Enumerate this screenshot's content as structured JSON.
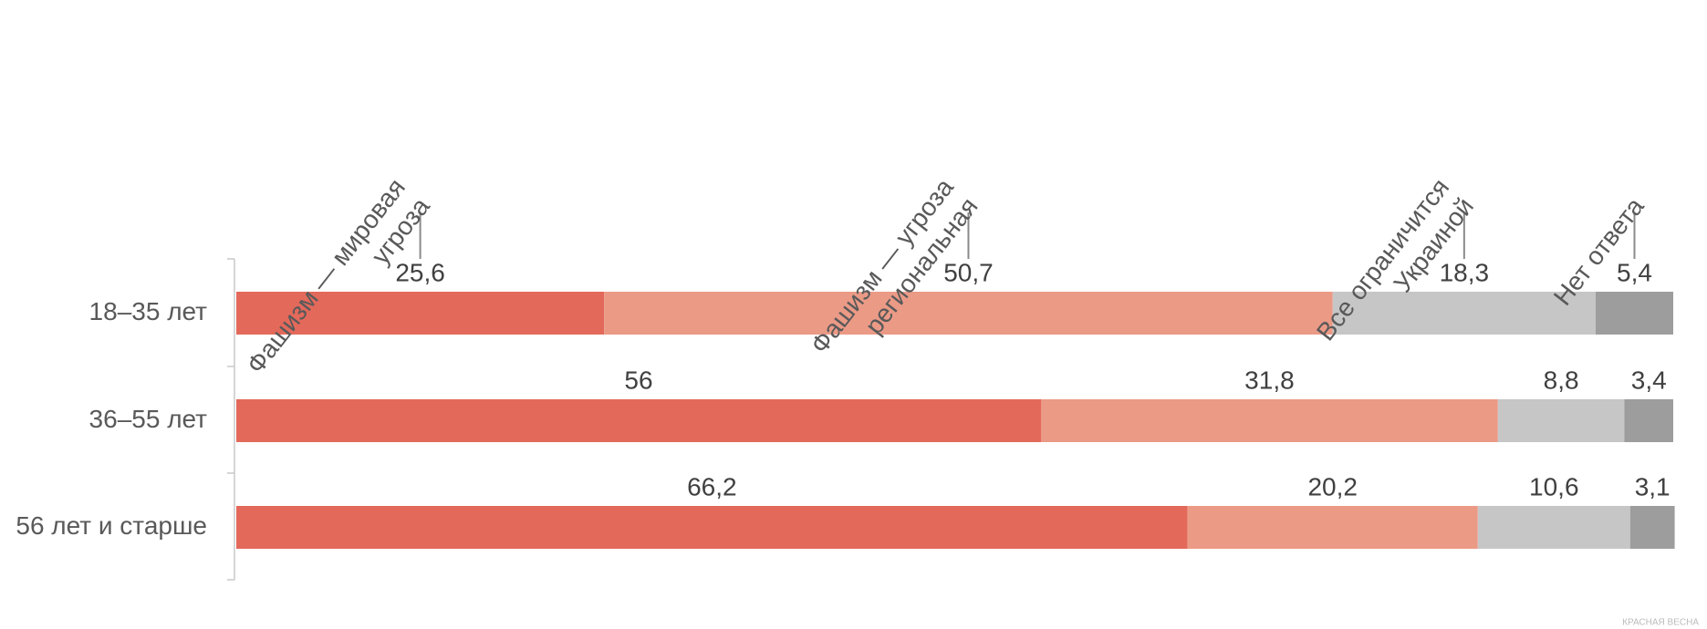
{
  "chart_data": {
    "type": "stacked-bar-horizontal",
    "categories": [
      "18–35 лет",
      "36–55 лет",
      "56 лет и старше"
    ],
    "xlim": [
      0,
      100
    ],
    "series": [
      {
        "name": "Фашизм — мировая угроза",
        "color": "#e3695b",
        "values": [
          25.6,
          56,
          66.2
        ],
        "value_labels": [
          "25,6",
          "56",
          "66,2"
        ]
      },
      {
        "name": "Фашизм — угроза региональная",
        "color": "#eb9a86",
        "values": [
          50.7,
          31.8,
          20.2
        ],
        "value_labels": [
          "50,7",
          "31,8",
          "20,2"
        ]
      },
      {
        "name": "Все ограничится Украиной",
        "color": "#c6c6c6",
        "values": [
          18.3,
          8.8,
          10.6
        ],
        "value_labels": [
          "18,3",
          "8,8",
          "10,6"
        ]
      },
      {
        "name": "Нет ответа",
        "color": "#9d9d9d",
        "values": [
          5.4,
          3.4,
          3.1
        ],
        "value_labels": [
          "5,4",
          "3,4",
          "3,1"
        ]
      }
    ],
    "watermark": "КРАСНАЯ ВЕСНА"
  }
}
